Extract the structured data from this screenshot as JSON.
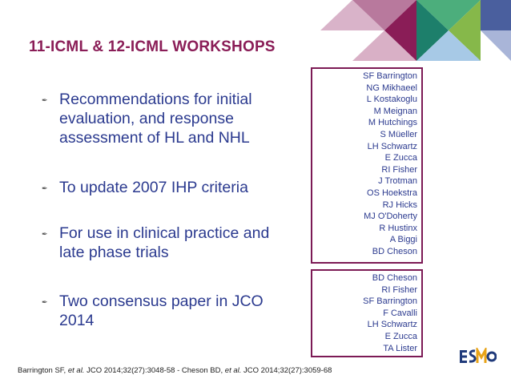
{
  "title": "11-ICML & 12-ICML WORKSHOPS",
  "bullets": [
    {
      "text": "Recommendations for initial evaluation, and response assessment of HL and NHL"
    },
    {
      "text": "To update 2007 IHP criteria"
    },
    {
      "text": "For use in clinical practice and late phase trials"
    },
    {
      "text": "Two consensus paper in JCO 2014"
    }
  ],
  "box1_names": [
    "SF Barrington",
    "NG Mikhaeel",
    "L Kostakoglu",
    "M Meignan",
    "M Hutchings",
    "S Müeller",
    "LH Schwartz",
    "E Zucca",
    "RI Fisher",
    "J Trotman",
    "OS Hoekstra",
    "RJ Hicks",
    "MJ O'Doherty",
    "R Hustinx",
    "A Biggi",
    "BD Cheson"
  ],
  "box2_names": [
    "BD Cheson",
    "RI Fisher",
    "SF Barrington",
    "F Cavalli",
    "LH Schwartz",
    "E Zucca",
    "TA Lister"
  ],
  "reference": {
    "part1": "Barrington SF, ",
    "etal1": "et al.",
    "part2": " JCO 2014;32(27):3048-58 - Cheson BD, ",
    "etal2": "et al.",
    "part3": " JCO 2014;32(27):3059-68"
  },
  "logo_text": "ESMO",
  "colors": {
    "title": "#8a1d57",
    "bullet_text": "#2b3a8f",
    "box_border": "#7c1a55"
  }
}
